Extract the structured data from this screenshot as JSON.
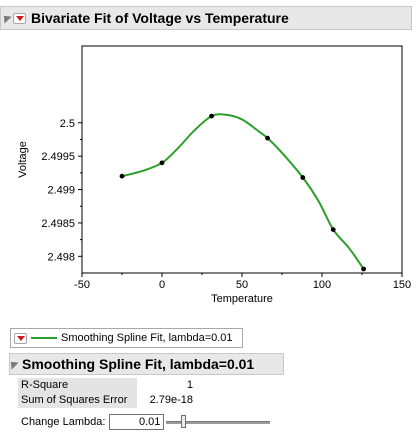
{
  "report": {
    "title": "Bivariate Fit of Voltage vs Temperature"
  },
  "chart_data": {
    "type": "scatter",
    "xlabel": "Temperature",
    "ylabel": "Voltage",
    "xlim": [
      -50,
      150
    ],
    "ylim": [
      2.49775,
      2.50115
    ],
    "x_ticks": [
      -50,
      0,
      50,
      100,
      150
    ],
    "x_tick_labels": [
      "-50",
      "0",
      "50",
      "100",
      "150"
    ],
    "y_ticks": [
      2.498,
      2.4985,
      2.499,
      2.4995,
      2.5
    ],
    "y_tick_labels": [
      "2.498",
      "2.4985",
      "2.499",
      "2.4995",
      "2.5"
    ],
    "points": [
      {
        "x": -25,
        "y": 2.4992
      },
      {
        "x": 0,
        "y": 2.4994
      },
      {
        "x": 31,
        "y": 2.5001
      },
      {
        "x": 66,
        "y": 2.49977
      },
      {
        "x": 88,
        "y": 2.49918
      },
      {
        "x": 107,
        "y": 2.4984
      },
      {
        "x": 126,
        "y": 2.49781
      }
    ],
    "fit_line": {
      "name": "Smoothing Spline Fit, lambda=0.01",
      "color": "#2ca02c",
      "x": [
        -25,
        -12,
        0,
        10,
        20,
        31,
        40,
        50,
        60,
        66,
        75,
        88,
        98,
        107,
        117,
        126
      ],
      "y": [
        2.4992,
        2.49928,
        2.4994,
        2.49962,
        2.49988,
        2.5001,
        2.50012,
        2.50005,
        2.49988,
        2.49977,
        2.49955,
        2.49918,
        2.49882,
        2.4984,
        2.49812,
        2.49781
      ]
    },
    "point_color": "#000000",
    "grid": false
  },
  "legend": {
    "label": "Smoothing Spline Fit, lambda=0.01"
  },
  "fit_report": {
    "title": "Smoothing Spline Fit, lambda=0.01",
    "stats": [
      {
        "label": "R-Square",
        "value": "1"
      },
      {
        "label": "Sum of Squares Error",
        "value": "2.79e-18"
      }
    ],
    "change_lambda_label": "Change Lambda:",
    "lambda_value": "0.01"
  }
}
